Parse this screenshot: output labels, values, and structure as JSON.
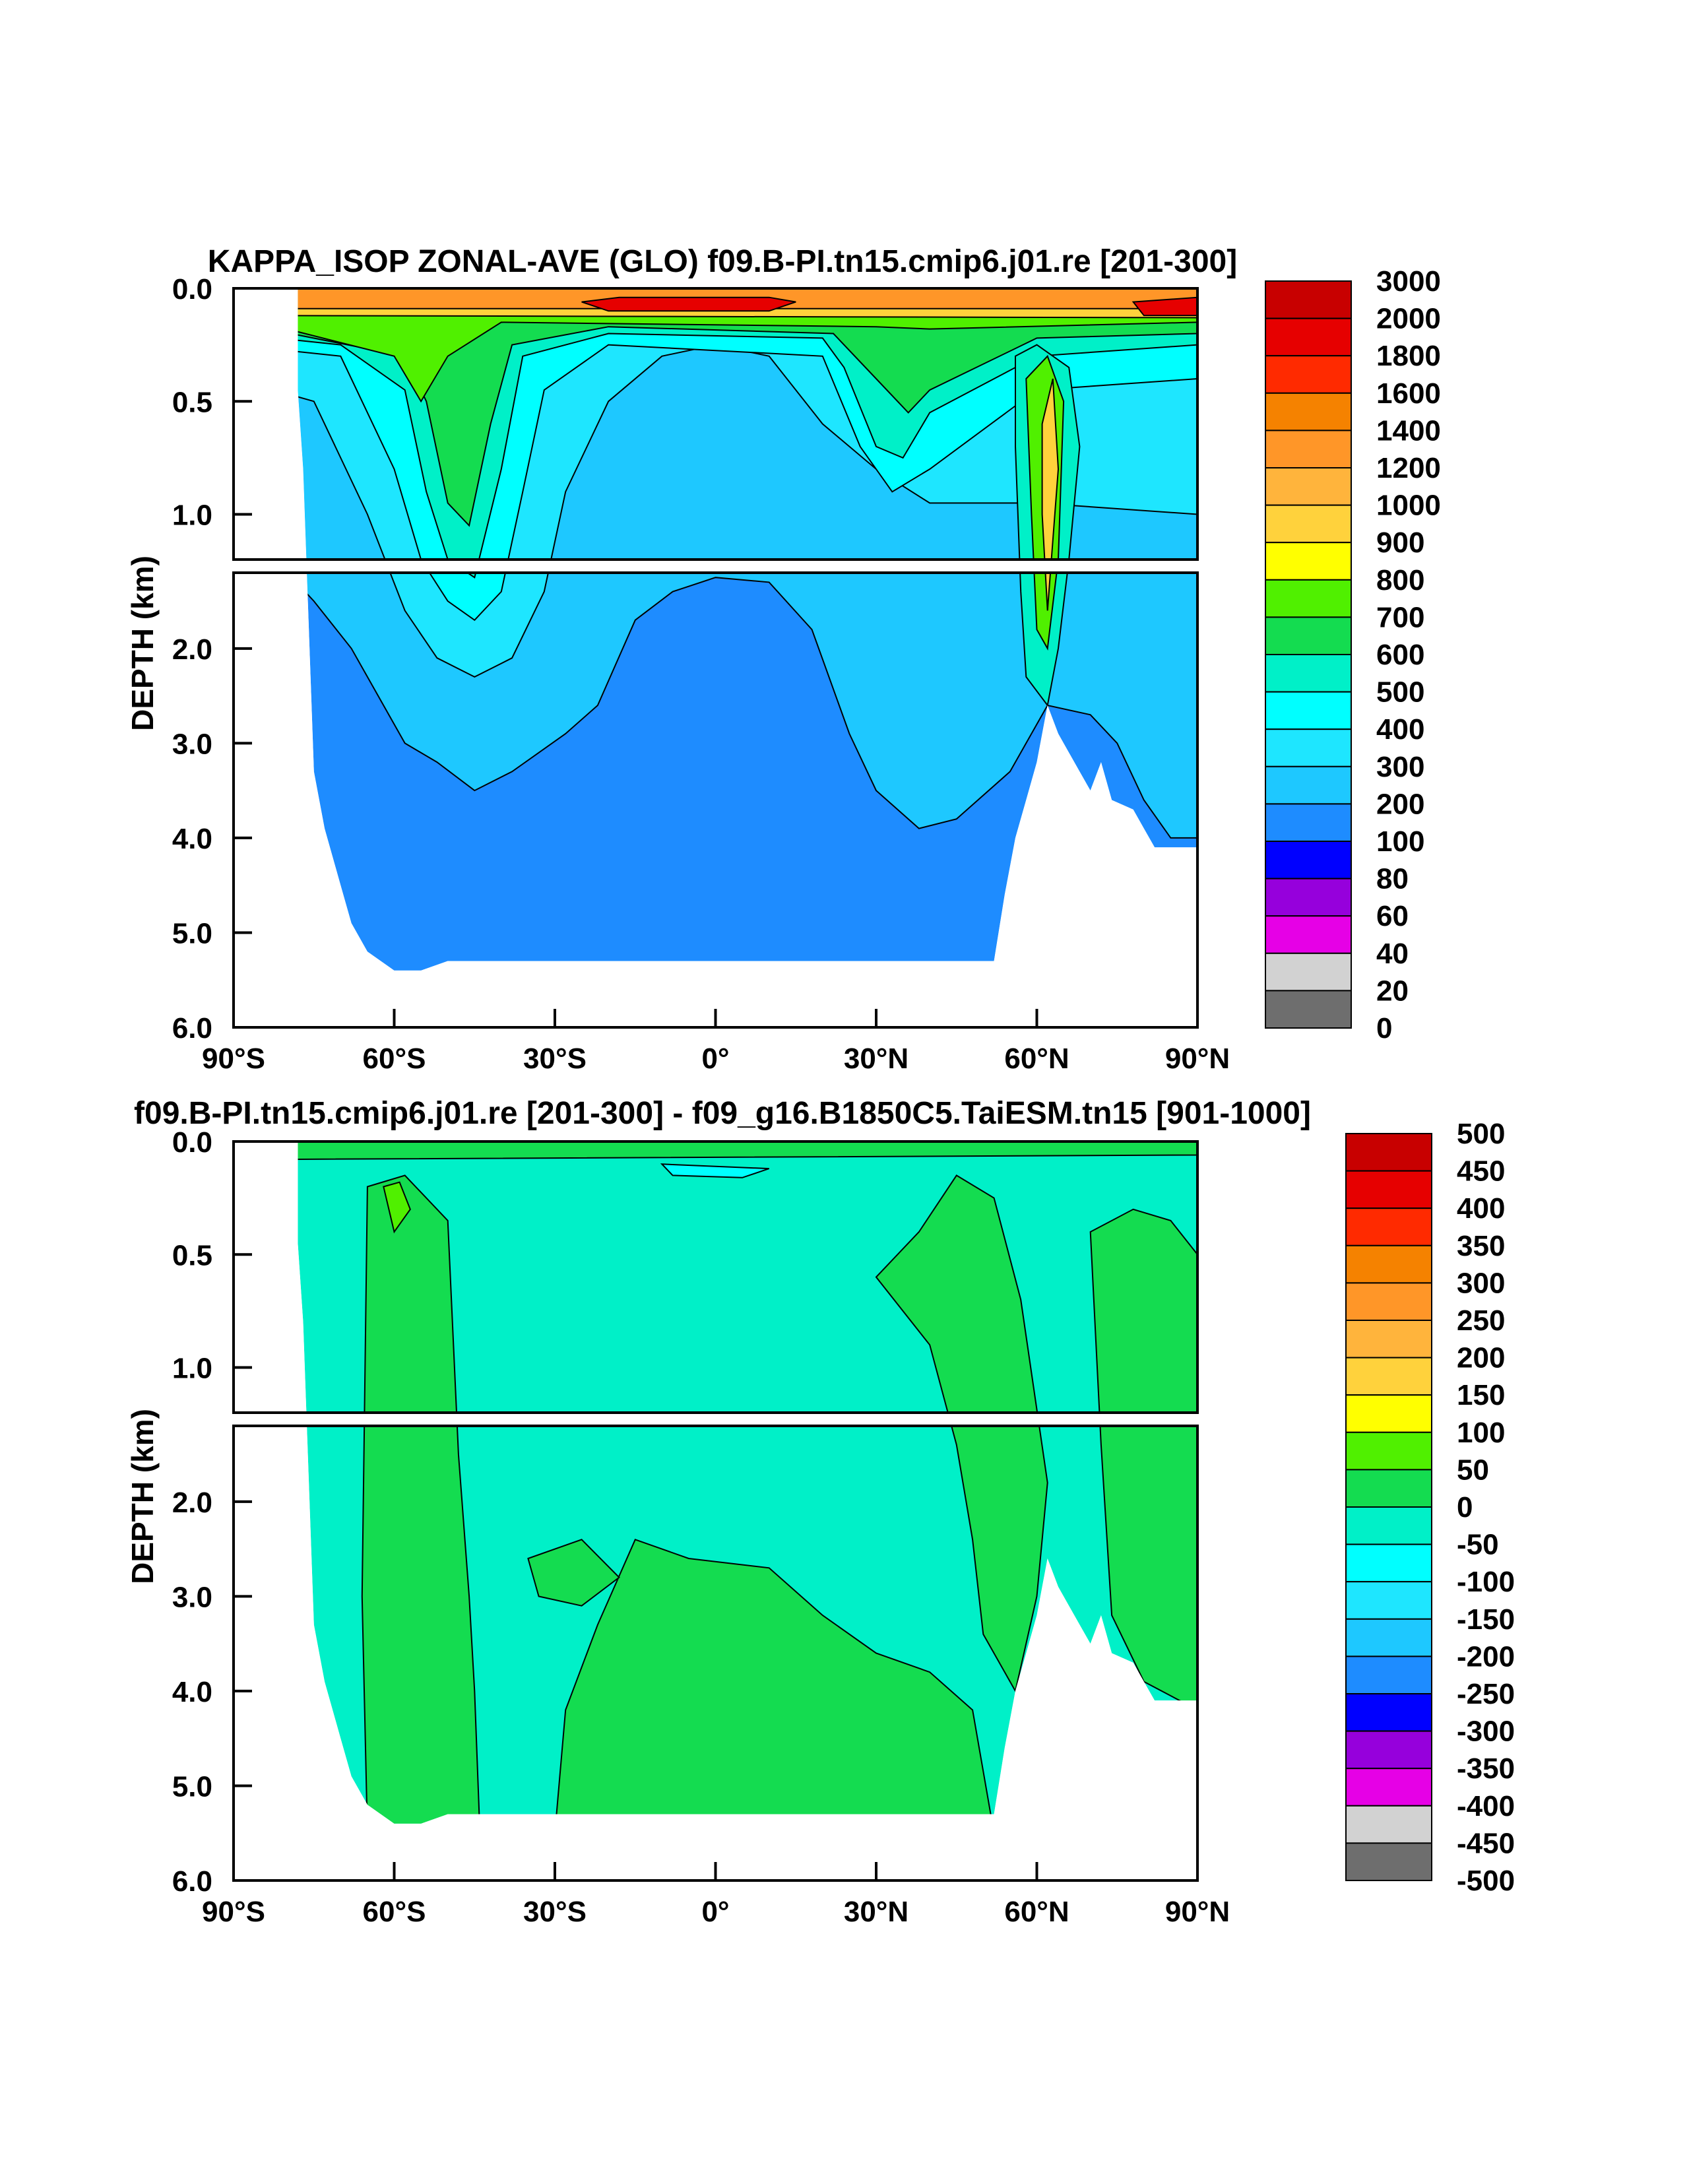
{
  "chart_data": [
    {
      "type": "contour",
      "title": "KAPPA_ISOP ZONAL-AVE (GLO) f09.B-PI.tn15.cmip6.j01.re [201-300]",
      "ylabel": "DEPTH (km)",
      "xlim": [
        -90,
        90
      ],
      "ylim": [
        6.0,
        0.0
      ],
      "y_break_km": 1.2,
      "x_ticks": [
        {
          "value": -90,
          "label": "90°S"
        },
        {
          "value": -60,
          "label": "60°S"
        },
        {
          "value": -30,
          "label": "30°S"
        },
        {
          "value": 0,
          "label": "0°"
        },
        {
          "value": 30,
          "label": "30°N"
        },
        {
          "value": 60,
          "label": "60°N"
        },
        {
          "value": 90,
          "label": "90°N"
        }
      ],
      "y_ticks_upper": [
        {
          "value": 0.0,
          "label": "0.0"
        },
        {
          "value": 0.5,
          "label": "0.5"
        },
        {
          "value": 1.0,
          "label": "1.0"
        }
      ],
      "y_ticks_lower": [
        {
          "value": 2.0,
          "label": "2.0"
        },
        {
          "value": 3.0,
          "label": "3.0"
        },
        {
          "value": 4.0,
          "label": "4.0"
        },
        {
          "value": 5.0,
          "label": "5.0"
        },
        {
          "value": 6.0,
          "label": "6.0"
        }
      ],
      "colorbar_levels": [
        "3000",
        "2000",
        "1800",
        "1600",
        "1400",
        "1200",
        "1000",
        "900",
        "800",
        "700",
        "600",
        "500",
        "400",
        "300",
        "200",
        "100",
        "80",
        "60",
        "40",
        "20",
        "0"
      ],
      "colorbar_colors": [
        "#c80000",
        "#e60000",
        "#ff2a00",
        "#f58200",
        "#ff9628",
        "#ffb43c",
        "#ffd23c",
        "#ffff00",
        "#50f000",
        "#14dc50",
        "#00f0c8",
        "#00ffff",
        "#1ee6ff",
        "#1ec8ff",
        "#1e8cff",
        "#0000ff",
        "#9600dc",
        "#e600e6",
        "#d2d2d2",
        "#6e6e6e"
      ],
      "bathymetry": [
        [
          -78,
          0.45
        ],
        [
          -77,
          0.8
        ],
        [
          -75,
          3.3
        ],
        [
          -73,
          3.9
        ],
        [
          -70,
          4.5
        ],
        [
          -68,
          4.9
        ],
        [
          -65,
          5.2
        ],
        [
          -60,
          5.4
        ],
        [
          -55,
          5.4
        ],
        [
          -50,
          5.3
        ],
        [
          -40,
          5.3
        ],
        [
          -20,
          5.3
        ],
        [
          0,
          5.3
        ],
        [
          20,
          5.3
        ],
        [
          40,
          5.3
        ],
        [
          52,
          5.3
        ],
        [
          54,
          4.6
        ],
        [
          56,
          4.0
        ],
        [
          58,
          3.6
        ],
        [
          60,
          3.2
        ],
        [
          62,
          2.6
        ],
        [
          64,
          2.9
        ],
        [
          66,
          3.1
        ],
        [
          68,
          3.3
        ],
        [
          70,
          3.5
        ],
        [
          72,
          3.2
        ],
        [
          74,
          3.6
        ],
        [
          78,
          3.7
        ],
        [
          80,
          3.9
        ],
        [
          82,
          4.1
        ],
        [
          84,
          4.1
        ],
        [
          90,
          4.1
        ]
      ]
    },
    {
      "type": "contour",
      "title": "f09.B-PI.tn15.cmip6.j01.re [201-300] - f09_g16.B1850C5.TaiESM.tn15 [901-1000]",
      "ylabel": "DEPTH (km)",
      "xlim": [
        -90,
        90
      ],
      "ylim": [
        6.0,
        0.0
      ],
      "y_break_km": 1.2,
      "x_ticks": [
        {
          "value": -90,
          "label": "90°S"
        },
        {
          "value": -60,
          "label": "60°S"
        },
        {
          "value": -30,
          "label": "30°S"
        },
        {
          "value": 0,
          "label": "0°"
        },
        {
          "value": 30,
          "label": "30°N"
        },
        {
          "value": 60,
          "label": "60°N"
        },
        {
          "value": 90,
          "label": "90°N"
        }
      ],
      "y_ticks_upper": [
        {
          "value": 0.0,
          "label": "0.0"
        },
        {
          "value": 0.5,
          "label": "0.5"
        },
        {
          "value": 1.0,
          "label": "1.0"
        }
      ],
      "y_ticks_lower": [
        {
          "value": 2.0,
          "label": "2.0"
        },
        {
          "value": 3.0,
          "label": "3.0"
        },
        {
          "value": 4.0,
          "label": "4.0"
        },
        {
          "value": 5.0,
          "label": "5.0"
        },
        {
          "value": 6.0,
          "label": "6.0"
        }
      ],
      "colorbar_levels": [
        "500",
        "450",
        "400",
        "350",
        "300",
        "250",
        "200",
        "150",
        "100",
        "50",
        "0",
        "-50",
        "-100",
        "-150",
        "-200",
        "-250",
        "-300",
        "-350",
        "-400",
        "-450",
        "-500"
      ],
      "colorbar_colors": [
        "#c80000",
        "#e60000",
        "#ff2a00",
        "#f58200",
        "#ff9628",
        "#ffb43c",
        "#ffd23c",
        "#ffff00",
        "#50f000",
        "#14dc50",
        "#00f0c8",
        "#00ffff",
        "#1ee6ff",
        "#1ec8ff",
        "#1e8cff",
        "#0000ff",
        "#9600dc",
        "#e600e6",
        "#d2d2d2",
        "#6e6e6e"
      ],
      "bathymetry": [
        [
          -78,
          0.45
        ],
        [
          -77,
          0.8
        ],
        [
          -75,
          3.3
        ],
        [
          -73,
          3.9
        ],
        [
          -70,
          4.5
        ],
        [
          -68,
          4.9
        ],
        [
          -65,
          5.2
        ],
        [
          -60,
          5.4
        ],
        [
          -55,
          5.4
        ],
        [
          -50,
          5.3
        ],
        [
          -40,
          5.3
        ],
        [
          -20,
          5.3
        ],
        [
          0,
          5.3
        ],
        [
          20,
          5.3
        ],
        [
          40,
          5.3
        ],
        [
          52,
          5.3
        ],
        [
          54,
          4.6
        ],
        [
          56,
          4.0
        ],
        [
          58,
          3.6
        ],
        [
          60,
          3.2
        ],
        [
          62,
          2.6
        ],
        [
          64,
          2.9
        ],
        [
          66,
          3.1
        ],
        [
          68,
          3.3
        ],
        [
          70,
          3.5
        ],
        [
          72,
          3.2
        ],
        [
          74,
          3.6
        ],
        [
          78,
          3.7
        ],
        [
          80,
          3.9
        ],
        [
          82,
          4.1
        ],
        [
          84,
          4.1
        ],
        [
          90,
          4.1
        ]
      ]
    }
  ]
}
